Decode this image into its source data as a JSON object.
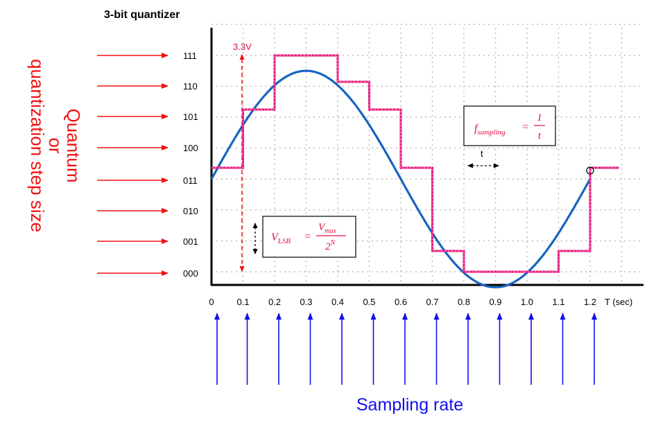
{
  "title": "3-bit quantizer",
  "side_label": {
    "lines": [
      "Quantum",
      "or",
      "quantization step size"
    ]
  },
  "bottom_label": "Sampling rate",
  "levels": [
    "111",
    "110",
    "101",
    "100",
    "011",
    "010",
    "001",
    "000"
  ],
  "time_ticks": [
    "0",
    "0.1",
    "0.2",
    "0.3",
    "0.4",
    "0.5",
    "0.6",
    "0.7",
    "0.8",
    "0.9",
    "1.0",
    "1.1",
    "1.2"
  ],
  "time_axis_label": "T (sec)",
  "vmax_label": "3.3V",
  "period_label": "t",
  "formula_sampling": {
    "lhs": "f",
    "lhs_sub": "sampling",
    "num": "1",
    "den": "t"
  },
  "formula_lsb": {
    "lhs": "V",
    "lhs_sub": "LSB",
    "num": "V",
    "num_sub": "max",
    "den": "2",
    "den_sup": "N"
  },
  "signal": {
    "description_free": true,
    "sample_times": [
      0,
      0.1,
      0.2,
      0.3,
      0.4,
      0.5,
      0.6,
      0.7,
      0.8,
      0.9,
      1.0,
      1.1,
      1.2
    ],
    "quantized_codes": [
      3,
      5,
      7,
      7,
      6,
      5,
      3,
      1,
      0,
      0,
      0,
      1,
      3
    ],
    "final_hold_code": 3,
    "amplitude_levels": 3.5,
    "offset_level": 3.5,
    "period_sec": 1.2
  },
  "colors": {
    "sine": "#1565c0",
    "staircase": "#e8157a",
    "red_arrows": "#f01010",
    "blue_arrows": "#1010ee",
    "grid": "#b8b8b8",
    "formula_text": "#e0103f"
  }
}
